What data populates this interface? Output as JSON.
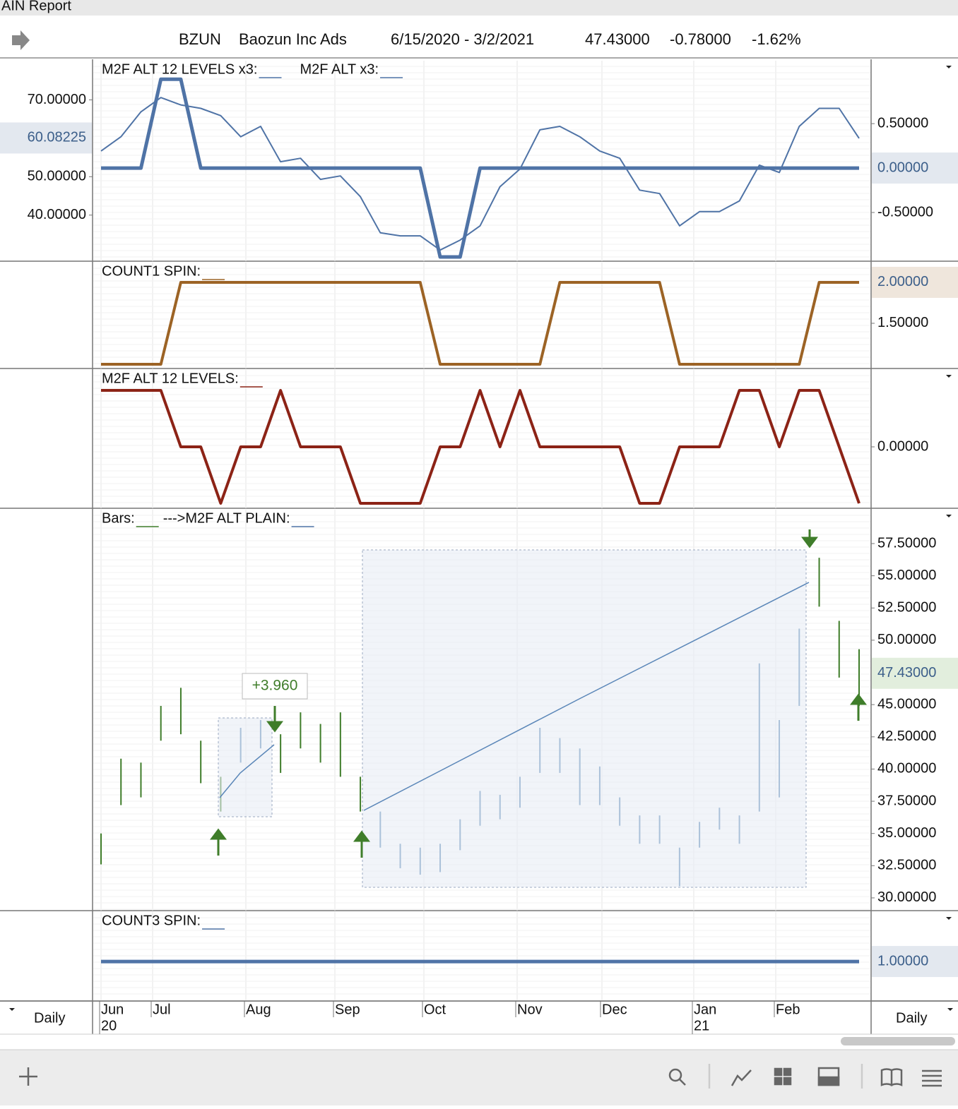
{
  "window_title": "AIN Report",
  "header": {
    "symbol": "BZUN",
    "name": "Baozun Inc Ads",
    "date_range": "6/15/2020 - 3/2/2021",
    "last": "47.43000",
    "change": "-0.78000",
    "change_pct": "-1.62%"
  },
  "panels": [
    {
      "type": "line",
      "ylim": [
        28,
        80.2
      ],
      "yticks": [
        {
          "value": 70,
          "label": "70.00000"
        },
        {
          "value": 50,
          "label": "50.00000"
        },
        {
          "value": 40,
          "label": "40.00000"
        }
      ],
      "current": {
        "value": 60.08225,
        "label": "60.08225",
        "color": "#e3e8ef"
      },
      "y2lim": [
        -1.048,
        1.208
      ],
      "y2ticks": [
        {
          "value": 0.5,
          "label": "0.50000"
        },
        {
          "value": -0.5,
          "label": "-0.50000"
        }
      ],
      "y2current": {
        "value": 0,
        "label": "0.00000",
        "color": "#e3e8ef"
      },
      "series": [
        {
          "name": "M2F ALT 12 LEVELS x3:",
          "color": "#4f73a6",
          "width": 5,
          "axis": "y2",
          "values": [
            0,
            0,
            0,
            1,
            1,
            0,
            0,
            0,
            0,
            0,
            0,
            0,
            0,
            0,
            0,
            0,
            0,
            -1,
            -1,
            0,
            0,
            0,
            0,
            0,
            0,
            0,
            0,
            0,
            0,
            0,
            0,
            0,
            0,
            0,
            0,
            0,
            0,
            0,
            0
          ]
        },
        {
          "name": "M2F ALT x3:",
          "color": "#4f73a6",
          "width": 2,
          "values": [
            56.7,
            60.4,
            66.9,
            70.6,
            68.7,
            67.8,
            65.9,
            60.4,
            63.1,
            53.9,
            54.8,
            49.3,
            50.2,
            44.8,
            35.4,
            34.6,
            34.6,
            30.9,
            33.5,
            37.2,
            47.4,
            52.0,
            62.2,
            63.1,
            60.4,
            56.7,
            54.8,
            46.5,
            45.6,
            37.2,
            40.9,
            40.9,
            43.7,
            53.0,
            51.1,
            63.1,
            67.8,
            67.8,
            60.0
          ]
        }
      ]
    },
    {
      "type": "line",
      "y2lim": [
        0.948,
        2.241
      ],
      "y2ticks": [
        {
          "value": 1.5,
          "label": "1.50000"
        }
      ],
      "y2current": {
        "value": 2,
        "label": "2.00000",
        "color": "#efe6dc"
      },
      "series": [
        {
          "name": "COUNT1 SPIN:",
          "color": "#9c6325",
          "width": 4,
          "axis": "y2",
          "values": [
            1,
            1,
            1,
            1,
            2,
            2,
            2,
            2,
            2,
            2,
            2,
            2,
            2,
            2,
            2,
            2,
            2,
            1,
            1,
            1,
            1,
            1,
            1,
            2,
            2,
            2,
            2,
            2,
            2,
            1,
            1,
            1,
            1,
            1,
            1,
            1,
            2,
            2,
            2
          ]
        }
      ]
    },
    {
      "type": "line",
      "y2lim": [
        -1.0875,
        1.3625
      ],
      "y2ticks": [
        {
          "value": 0,
          "label": "0.00000"
        }
      ],
      "series": [
        {
          "name": "M2F ALT 12 LEVELS:",
          "color": "#8c2316",
          "width": 4,
          "axis": "y2",
          "values": [
            1,
            1,
            1,
            1,
            0,
            0,
            -1,
            0,
            0,
            1,
            0,
            0,
            0,
            -1,
            -1,
            -1,
            -1,
            0,
            0,
            1,
            0,
            1,
            0,
            0,
            0,
            0,
            0,
            -1,
            -1,
            0,
            0,
            0,
            1,
            1,
            0,
            1,
            1,
            0,
            -1
          ]
        }
      ]
    },
    {
      "type": "bars",
      "name": "Bars:",
      "overlay": "--->M2F ALT PLAIN:",
      "annotation": "+3.960",
      "y2lim": [
        29.01,
        60.13
      ],
      "y2ticks": [
        {
          "value": 57.5,
          "label": "57.50000"
        },
        {
          "value": 55,
          "label": "55.00000"
        },
        {
          "value": 52.5,
          "label": "52.50000"
        },
        {
          "value": 50,
          "label": "50.00000"
        },
        {
          "value": 45,
          "label": "45.00000"
        },
        {
          "value": 42.5,
          "label": "42.50000"
        },
        {
          "value": 40,
          "label": "40.00000"
        },
        {
          "value": 37.5,
          "label": "37.50000"
        },
        {
          "value": 35,
          "label": "35.00000"
        },
        {
          "value": 32.5,
          "label": "32.50000"
        },
        {
          "value": 30,
          "label": "30.00000"
        }
      ],
      "y2current": {
        "value": 47.43,
        "label": "47.43000",
        "color": "#e2eedd"
      },
      "highs": [
        35.0,
        40.8,
        40.5,
        44.9,
        46.3,
        42.2,
        39.4,
        43.2,
        43.8,
        42.7,
        44.4,
        43.5,
        44.4,
        39.4,
        36.7,
        34.2,
        33.9,
        34.2,
        36.1,
        38.3,
        38.0,
        39.4,
        43.2,
        42.4,
        41.6,
        40.2,
        37.8,
        36.4,
        36.4,
        33.9,
        35.9,
        37.0,
        36.4,
        48.2,
        43.8,
        50.9,
        56.4,
        51.5,
        49.3
      ],
      "lows": [
        32.6,
        37.2,
        37.8,
        42.2,
        42.7,
        38.9,
        36.7,
        40.5,
        41.6,
        39.7,
        41.6,
        40.5,
        39.4,
        36.7,
        33.9,
        32.3,
        31.8,
        32.0,
        33.7,
        35.6,
        36.1,
        37.0,
        39.7,
        39.7,
        37.2,
        37.2,
        35.6,
        34.2,
        34.2,
        30.9,
        33.9,
        35.3,
        34.2,
        36.7,
        37.8,
        44.9,
        52.6,
        47.1,
        44.9
      ],
      "bar_colors": [
        "#3f7d2a",
        "#3f7d2a",
        "#3f7d2a",
        "#3f7d2a",
        "#3f7d2a",
        "#3f7d2a",
        "#3f7d2a",
        "#4f7fb0",
        "#4f7fb0",
        "#3f7d2a",
        "#3f7d2a",
        "#3f7d2a",
        "#3f7d2a",
        "#3f7d2a",
        "#4f7fb0",
        "#4f7fb0",
        "#4f7fb0",
        "#4f7fb0",
        "#4f7fb0",
        "#4f7fb0",
        "#4f7fb0",
        "#4f7fb0",
        "#4f7fb0",
        "#4f7fb0",
        "#4f7fb0",
        "#4f7fb0",
        "#4f7fb0",
        "#4f7fb0",
        "#4f7fb0",
        "#4f7fb0",
        "#4f7fb0",
        "#4f7fb0",
        "#4f7fb0",
        "#4f7fb0",
        "#4f7fb0",
        "#4f7fb0",
        "#3f7d2a",
        "#3f7d2a",
        "#3f7d2a"
      ]
    },
    {
      "type": "line",
      "y2lim": [
        0.556,
        1.556
      ],
      "y2current": {
        "value": 1,
        "label": "1.00000",
        "color": "#e3e8ef"
      },
      "series": [
        {
          "name": "COUNT3 SPIN:",
          "color": "#4f73a6",
          "width": 5,
          "axis": "y2",
          "values": [
            1,
            1
          ]
        }
      ]
    }
  ],
  "x_axis": {
    "months": [
      "Jun",
      "Jul",
      "Aug",
      "Sep",
      "Oct",
      "Nov",
      "Dec",
      "Jan",
      "Feb"
    ],
    "years": [
      "20",
      "21"
    ]
  },
  "footer": {
    "left": "Daily",
    "right": "Daily"
  }
}
